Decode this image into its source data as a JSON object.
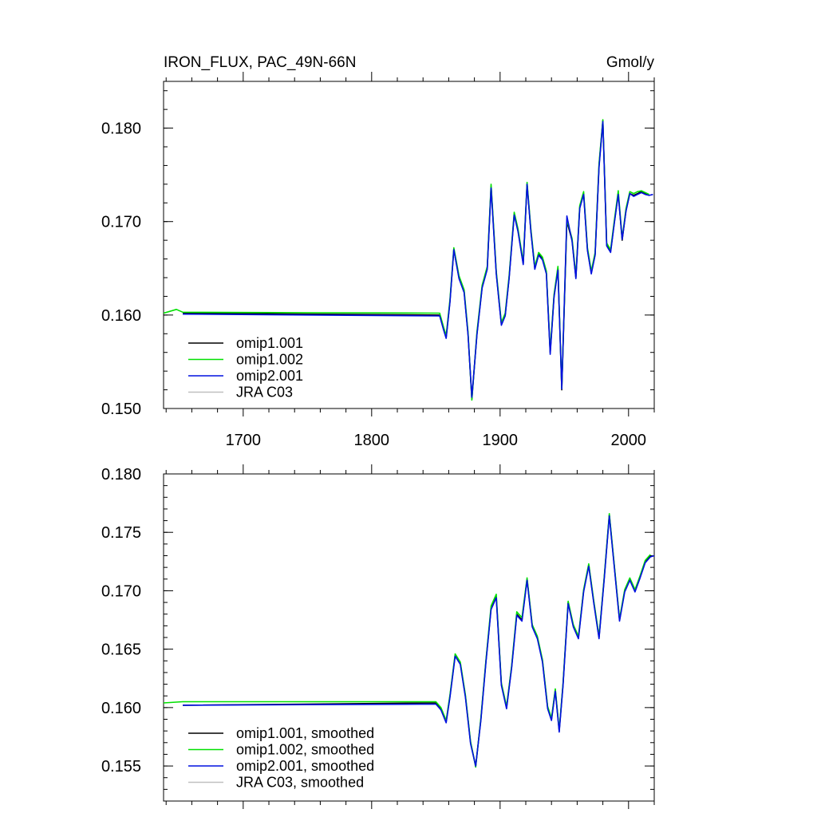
{
  "chart_data": [
    {
      "type": "line",
      "title": "IRON_FLUX, PAC_49N-66N",
      "units_label": "Gmol/y",
      "xlabel": "",
      "ylabel": "",
      "xlim": [
        1638,
        2020
      ],
      "ylim": [
        0.15,
        0.185
      ],
      "x_ticks": [
        1700,
        1800,
        1900,
        2000
      ],
      "x_tick_labels": [
        "1700",
        "1800",
        "1900",
        "2000"
      ],
      "y_ticks": [
        0.15,
        0.16,
        0.17,
        0.18
      ],
      "y_tick_labels": [
        "0.150",
        "0.160",
        "0.170",
        "0.180"
      ],
      "grid": false,
      "legend_position": "bottom-left",
      "legend": [
        "omip1.001",
        "omip1.002",
        "omip2.001",
        "JRA C03"
      ],
      "series": [
        {
          "name": "omip1.001",
          "color": "#000000",
          "x": [
            1653,
            1853,
            1856,
            1858,
            1861,
            1864,
            1868,
            1872,
            1875,
            1878,
            1882,
            1886,
            1890,
            1893,
            1897,
            1901,
            1904,
            1907,
            1911,
            1914,
            1918,
            1921,
            1924,
            1927,
            1930,
            1933,
            1936,
            1939,
            1942,
            1945,
            1948,
            1952,
            1956,
            1959,
            1962,
            1965,
            1968,
            1971,
            1974,
            1977,
            1980,
            1983,
            1986,
            1989,
            1992,
            1995,
            1998,
            2001,
            2004,
            2007,
            2010,
            2013,
            2016
          ],
          "y": [
            0.1602,
            0.16,
            0.1585,
            0.1576,
            0.1615,
            0.167,
            0.164,
            0.1625,
            0.158,
            0.151,
            0.158,
            0.163,
            0.165,
            0.1738,
            0.1645,
            0.159,
            0.16,
            0.164,
            0.1708,
            0.169,
            0.1655,
            0.174,
            0.169,
            0.165,
            0.1665,
            0.166,
            0.1645,
            0.156,
            0.162,
            0.165,
            0.152,
            0.17,
            0.168,
            0.164,
            0.1715,
            0.173,
            0.167,
            0.1645,
            0.1665,
            0.176,
            0.1808,
            0.1675,
            0.1668,
            0.17,
            0.173,
            0.168,
            0.1712,
            0.173,
            0.1728,
            0.173,
            0.1732,
            0.173,
            0.1728
          ]
        },
        {
          "name": "omip1.002",
          "color": "#00e000",
          "x": [
            1638,
            1648,
            1653,
            1853,
            1856,
            1858,
            1861,
            1864,
            1868,
            1872,
            1875,
            1878,
            1882,
            1886,
            1890,
            1893,
            1897,
            1901,
            1904,
            1907,
            1911,
            1914,
            1918,
            1921,
            1924,
            1927,
            1930,
            1933,
            1936,
            1939,
            1942,
            1945,
            1948,
            1952,
            1956,
            1959,
            1962,
            1965,
            1968,
            1971,
            1974,
            1977,
            1980,
            1983,
            1986,
            1989,
            1992,
            1995,
            1998,
            2001,
            2004,
            2007,
            2010,
            2013,
            2016
          ],
          "y": [
            0.1602,
            0.1606,
            0.1603,
            0.1602,
            0.1587,
            0.1578,
            0.1617,
            0.1672,
            0.1642,
            0.1627,
            0.1582,
            0.1509,
            0.1582,
            0.1632,
            0.1652,
            0.174,
            0.1647,
            0.1592,
            0.1602,
            0.1642,
            0.171,
            0.1692,
            0.1657,
            0.1742,
            0.1692,
            0.1652,
            0.1667,
            0.1662,
            0.1647,
            0.1562,
            0.1622,
            0.1652,
            0.1522,
            0.1702,
            0.1682,
            0.1642,
            0.1717,
            0.1732,
            0.1672,
            0.1647,
            0.1667,
            0.1762,
            0.1809,
            0.1677,
            0.167,
            0.1702,
            0.1733,
            0.1682,
            0.1714,
            0.1732,
            0.173,
            0.1732,
            0.1733,
            0.1731,
            0.1729
          ]
        },
        {
          "name": "omip2.001",
          "color": "#0010e0",
          "x": [
            1653,
            1853,
            1856,
            1858,
            1861,
            1864,
            1868,
            1872,
            1875,
            1878,
            1882,
            1886,
            1890,
            1893,
            1897,
            1901,
            1904,
            1907,
            1911,
            1914,
            1918,
            1921,
            1924,
            1927,
            1930,
            1933,
            1936,
            1939,
            1942,
            1945,
            1948,
            1952,
            1956,
            1959,
            1962,
            1965,
            1968,
            1971,
            1974,
            1977,
            1980,
            1983,
            1986,
            1989,
            1992,
            1995,
            1998,
            2001,
            2004,
            2007,
            2010,
            2013,
            2016,
            2019
          ],
          "y": [
            0.1601,
            0.1599,
            0.1584,
            0.1575,
            0.1614,
            0.167,
            0.1639,
            0.1624,
            0.1579,
            0.1512,
            0.1579,
            0.1629,
            0.1649,
            0.1736,
            0.1644,
            0.1589,
            0.1599,
            0.1639,
            0.1707,
            0.1689,
            0.1654,
            0.174,
            0.1689,
            0.1649,
            0.1664,
            0.1659,
            0.1644,
            0.1558,
            0.1619,
            0.1648,
            0.1521,
            0.1706,
            0.1679,
            0.1639,
            0.1714,
            0.1729,
            0.1669,
            0.1644,
            0.1664,
            0.1758,
            0.1807,
            0.1674,
            0.1667,
            0.1699,
            0.1729,
            0.1681,
            0.1711,
            0.173,
            0.1727,
            0.1729,
            0.1731,
            0.1729,
            0.1728,
            0.1729
          ]
        },
        {
          "name": "JRA C03",
          "color": "#c0c0c0",
          "x": [],
          "y": []
        }
      ]
    },
    {
      "type": "line",
      "title": "",
      "xlabel": "",
      "ylabel": "",
      "xlim": [
        1638,
        2020
      ],
      "ylim": [
        0.152,
        0.18
      ],
      "x_ticks": [
        1700,
        1800,
        1900,
        2000
      ],
      "x_tick_labels": [
        "",
        "",
        "",
        ""
      ],
      "y_ticks": [
        0.155,
        0.16,
        0.165,
        0.17,
        0.175,
        0.18
      ],
      "y_tick_labels": [
        "0.155",
        "0.160",
        "0.165",
        "0.170",
        "0.175",
        "0.180"
      ],
      "grid": false,
      "legend_position": "bottom-left",
      "legend": [
        "omip1.001, smoothed",
        "omip1.002, smoothed",
        "omip2.001, smoothed",
        "JRA C03, smoothed"
      ],
      "series": [
        {
          "name": "omip1.001, smoothed",
          "color": "#000000",
          "x": [
            1653,
            1850,
            1854,
            1858,
            1861,
            1865,
            1869,
            1873,
            1877,
            1881,
            1885,
            1889,
            1893,
            1897,
            1901,
            1905,
            1909,
            1913,
            1917,
            1921,
            1925,
            1929,
            1933,
            1937,
            1940,
            1943,
            1946,
            1949,
            1953,
            1957,
            1961,
            1965,
            1969,
            1973,
            1977,
            1981,
            1985,
            1989,
            1993,
            1997,
            2001,
            2005,
            2009,
            2013,
            2017
          ],
          "y": [
            0.1602,
            0.1604,
            0.1599,
            0.1588,
            0.161,
            0.1645,
            0.1638,
            0.161,
            0.157,
            0.155,
            0.159,
            0.164,
            0.1685,
            0.1695,
            0.162,
            0.16,
            0.1635,
            0.168,
            0.1675,
            0.171,
            0.167,
            0.166,
            0.164,
            0.16,
            0.159,
            0.1615,
            0.158,
            0.162,
            0.169,
            0.167,
            0.166,
            0.17,
            0.1722,
            0.169,
            0.166,
            0.171,
            0.1765,
            0.172,
            0.1675,
            0.17,
            0.171,
            0.17,
            0.1712,
            0.1725,
            0.173
          ]
        },
        {
          "name": "omip1.002, smoothed",
          "color": "#00e000",
          "x": [
            1638,
            1653,
            1850,
            1854,
            1858,
            1861,
            1865,
            1869,
            1873,
            1877,
            1881,
            1885,
            1889,
            1893,
            1897,
            1901,
            1905,
            1909,
            1913,
            1917,
            1921,
            1925,
            1929,
            1933,
            1937,
            1940,
            1943,
            1946,
            1949,
            1953,
            1957,
            1961,
            1965,
            1969,
            1973,
            1977,
            1981,
            1985,
            1989,
            1993,
            1997,
            2001,
            2005,
            2009,
            2013,
            2017
          ],
          "y": [
            0.1604,
            0.1605,
            0.1605,
            0.16,
            0.1589,
            0.1611,
            0.1646,
            0.1639,
            0.1611,
            0.1571,
            0.1549,
            0.1591,
            0.1641,
            0.1687,
            0.1697,
            0.1621,
            0.1601,
            0.1636,
            0.1682,
            0.1677,
            0.1711,
            0.1671,
            0.1661,
            0.1641,
            0.1601,
            0.1591,
            0.1616,
            0.1581,
            0.1621,
            0.1691,
            0.1671,
            0.1661,
            0.1701,
            0.1723,
            0.1691,
            0.1661,
            0.1711,
            0.1766,
            0.1721,
            0.1676,
            0.1701,
            0.1711,
            0.1701,
            0.1713,
            0.1726,
            0.1731
          ]
        },
        {
          "name": "omip2.001, smoothed",
          "color": "#0010e0",
          "x": [
            1653,
            1850,
            1854,
            1858,
            1861,
            1865,
            1869,
            1873,
            1877,
            1881,
            1885,
            1889,
            1893,
            1897,
            1901,
            1905,
            1909,
            1913,
            1917,
            1921,
            1925,
            1929,
            1933,
            1937,
            1940,
            1943,
            1946,
            1949,
            1953,
            1957,
            1961,
            1965,
            1969,
            1973,
            1977,
            1981,
            1985,
            1989,
            1993,
            1997,
            2001,
            2005,
            2009,
            2013,
            2017,
            2020
          ],
          "y": [
            0.1602,
            0.1603,
            0.1598,
            0.1587,
            0.1609,
            0.1644,
            0.1637,
            0.1609,
            0.1569,
            0.155,
            0.1589,
            0.1639,
            0.1684,
            0.1694,
            0.1619,
            0.1599,
            0.1634,
            0.1679,
            0.1674,
            0.1709,
            0.1669,
            0.1659,
            0.1639,
            0.1599,
            0.1589,
            0.1614,
            0.1579,
            0.1619,
            0.1689,
            0.1669,
            0.1659,
            0.1699,
            0.1721,
            0.1689,
            0.1659,
            0.1709,
            0.1764,
            0.1719,
            0.1674,
            0.1699,
            0.1709,
            0.1699,
            0.1711,
            0.1724,
            0.1729,
            0.173
          ]
        },
        {
          "name": "JRA C03, smoothed",
          "color": "#c0c0c0",
          "x": [],
          "y": []
        }
      ]
    }
  ]
}
